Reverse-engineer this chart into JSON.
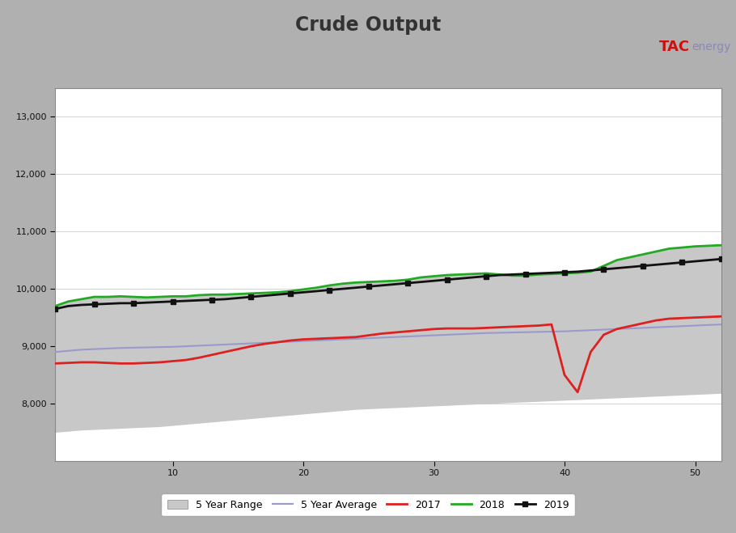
{
  "title": "Crude Output",
  "title_color": "#333333",
  "background_color": "#b0b0b0",
  "plot_bg_color": "#ffffff",
  "banner_color": "#1a5ea8",
  "ylim": [
    7000,
    13500
  ],
  "yticks": [
    8000,
    9000,
    10000,
    11000,
    12000,
    13000
  ],
  "n_weeks": 52,
  "five_yr_range_upper": [
    9700,
    9780,
    9820,
    9860,
    9870,
    9880,
    9870,
    9870,
    9870,
    9870,
    9880,
    9890,
    9900,
    9900,
    9910,
    9920,
    9930,
    9940,
    9960,
    9990,
    10020,
    10060,
    10090,
    10110,
    10120,
    10130,
    10150,
    10170,
    10200,
    10220,
    10240,
    10250,
    10260,
    10270,
    10260,
    10230,
    10230,
    10250,
    10260,
    10270,
    10280,
    10290,
    10400,
    10500,
    10550,
    10600,
    10650,
    10700,
    10720,
    10740,
    10750,
    10760
  ],
  "five_yr_range_lower": [
    7500,
    7520,
    7540,
    7550,
    7560,
    7570,
    7580,
    7590,
    7600,
    7620,
    7640,
    7660,
    7680,
    7700,
    7720,
    7740,
    7760,
    7780,
    7800,
    7820,
    7840,
    7860,
    7880,
    7900,
    7910,
    7920,
    7930,
    7940,
    7950,
    7960,
    7970,
    7980,
    7990,
    8000,
    8010,
    8020,
    8030,
    8040,
    8050,
    8060,
    8070,
    8080,
    8090,
    8100,
    8110,
    8120,
    8130,
    8140,
    8150,
    8160,
    8170,
    8180
  ],
  "five_yr_avg": [
    8900,
    8920,
    8940,
    8950,
    8960,
    8970,
    8975,
    8980,
    8985,
    8990,
    9000,
    9010,
    9020,
    9030,
    9040,
    9050,
    9060,
    9070,
    9080,
    9090,
    9100,
    9110,
    9120,
    9130,
    9140,
    9150,
    9160,
    9170,
    9180,
    9190,
    9200,
    9210,
    9220,
    9230,
    9235,
    9240,
    9245,
    9250,
    9255,
    9260,
    9270,
    9280,
    9290,
    9300,
    9310,
    9320,
    9330,
    9340,
    9350,
    9360,
    9370,
    9380
  ],
  "series_2017": [
    8700,
    8710,
    8720,
    8720,
    8710,
    8700,
    8700,
    8710,
    8720,
    8740,
    8760,
    8800,
    8850,
    8900,
    8950,
    9000,
    9040,
    9070,
    9100,
    9120,
    9130,
    9140,
    9150,
    9160,
    9190,
    9220,
    9240,
    9260,
    9280,
    9300,
    9310,
    9310,
    9310,
    9320,
    9330,
    9340,
    9350,
    9360,
    9380,
    8500,
    8200,
    8900,
    9200,
    9300,
    9350,
    9400,
    9450,
    9480,
    9490,
    9500,
    9510,
    9520
  ],
  "series_2018": [
    9700,
    9780,
    9820,
    9860,
    9860,
    9870,
    9860,
    9850,
    9860,
    9870,
    9870,
    9890,
    9900,
    9900,
    9910,
    9920,
    9930,
    9940,
    9960,
    9990,
    10020,
    10060,
    10090,
    10110,
    10120,
    10130,
    10140,
    10160,
    10200,
    10220,
    10240,
    10250,
    10260,
    10270,
    10250,
    10230,
    10230,
    10250,
    10260,
    10270,
    10280,
    10300,
    10400,
    10500,
    10550,
    10600,
    10650,
    10700,
    10720,
    10740,
    10750,
    10760
  ],
  "series_2019": [
    9650,
    9700,
    9720,
    9730,
    9740,
    9750,
    9750,
    9760,
    9770,
    9780,
    9790,
    9800,
    9810,
    9820,
    9840,
    9860,
    9880,
    9900,
    9920,
    9940,
    9960,
    9980,
    10000,
    10020,
    10040,
    10060,
    10080,
    10100,
    10120,
    10140,
    10160,
    10180,
    10200,
    10220,
    10240,
    10250,
    10260,
    10270,
    10280,
    10290,
    10300,
    10320,
    10340,
    10360,
    10380,
    10400,
    10420,
    10440,
    10460,
    10480,
    10500,
    10520
  ],
  "colors": {
    "range_fill": "#c8c8c8",
    "range_edge": "#c8c8c8",
    "avg_line": "#9999cc",
    "y2017": "#dd2020",
    "y2018": "#22aa22",
    "y2019": "#111111"
  }
}
